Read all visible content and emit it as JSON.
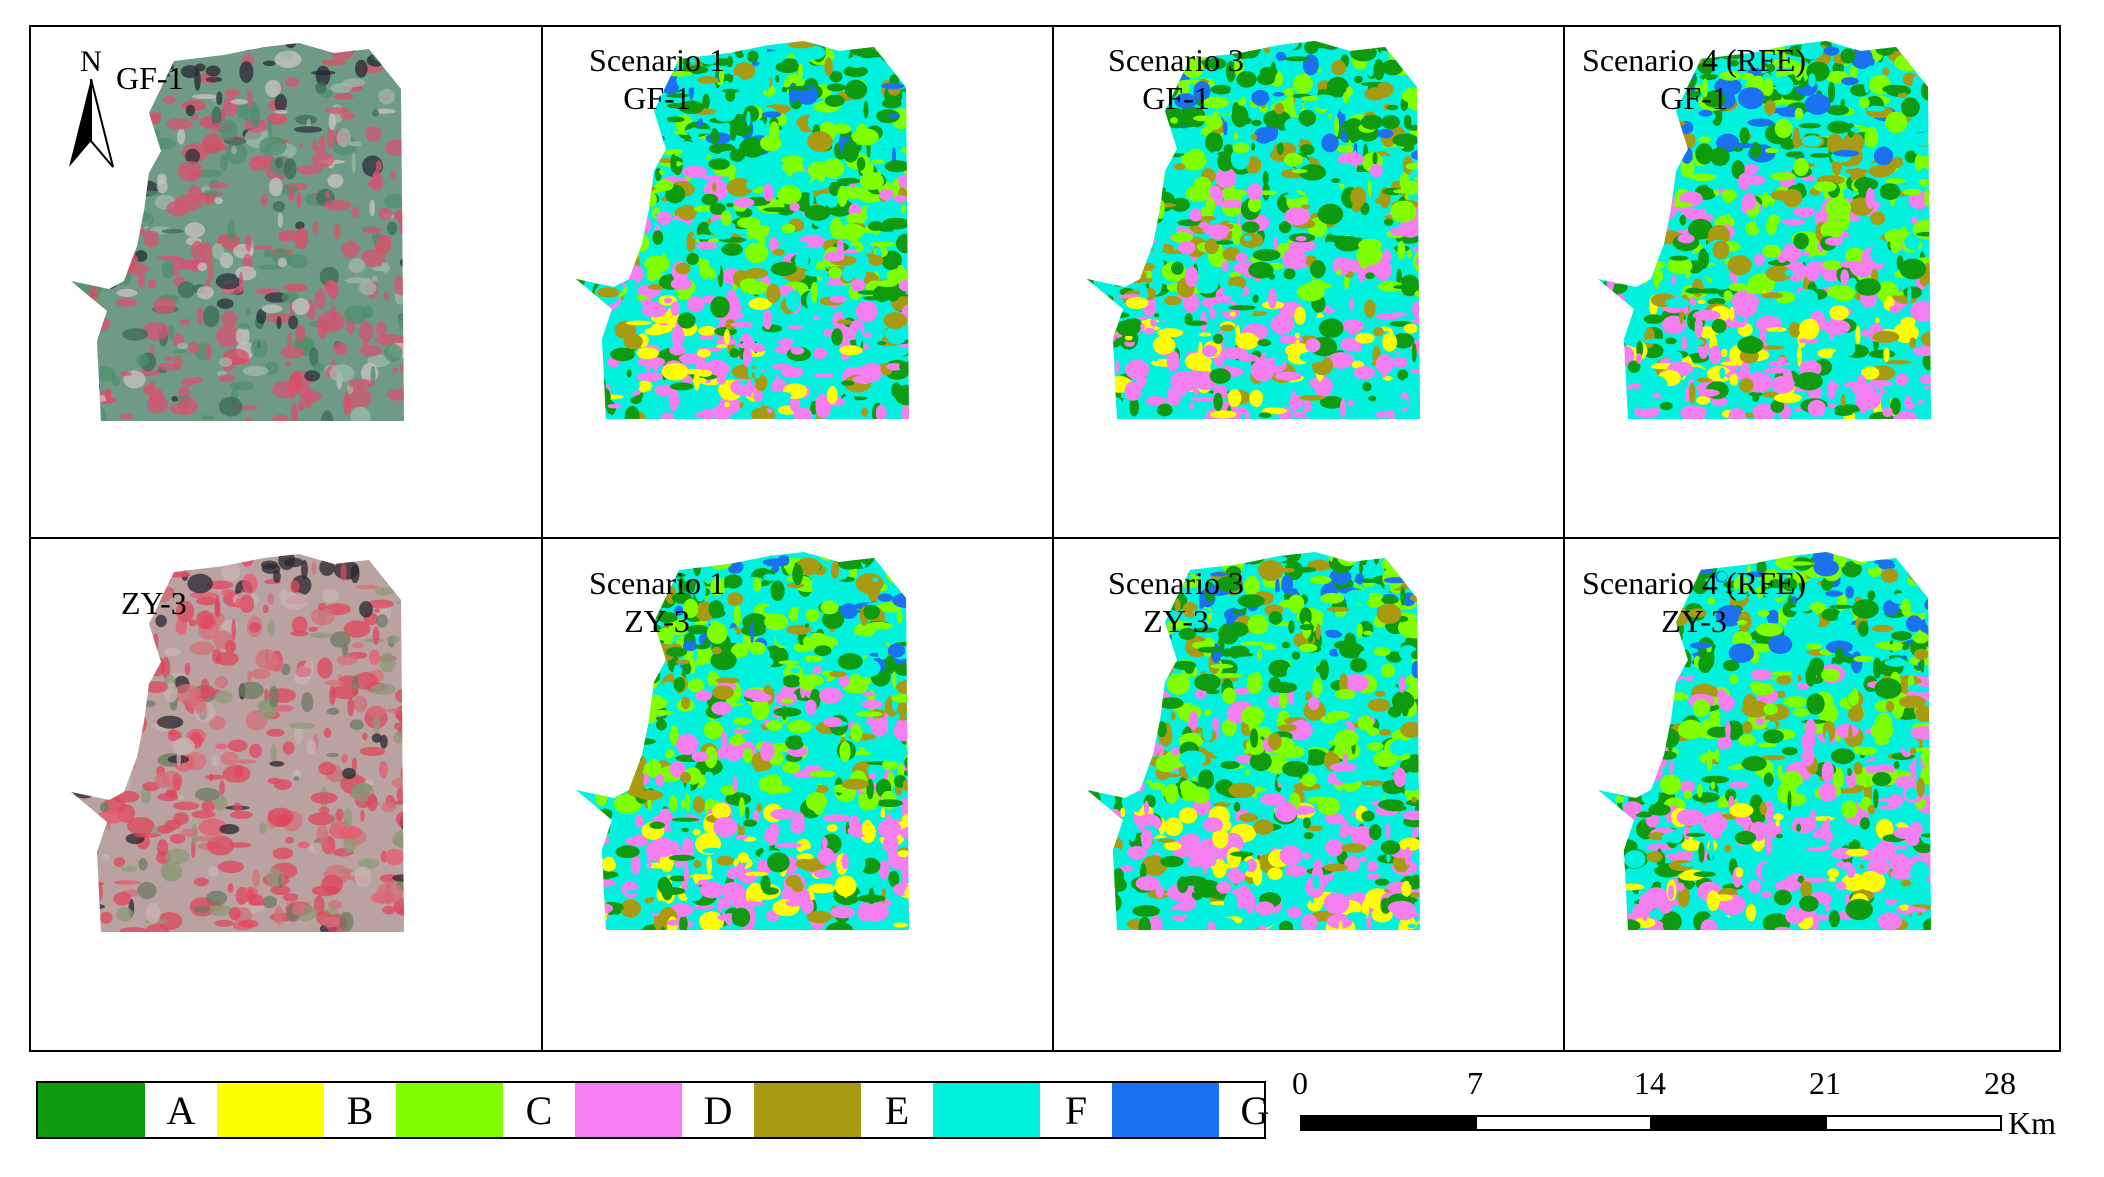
{
  "panels": [
    {
      "id": "gf1-image",
      "kind": "image",
      "lines": [
        "GF-1"
      ]
    },
    {
      "id": "s1-gf1",
      "kind": "class",
      "lines": [
        "Scenario 1",
        "GF-1"
      ]
    },
    {
      "id": "s3-gf1",
      "kind": "class",
      "lines": [
        "Scenario 3",
        "GF-1"
      ]
    },
    {
      "id": "s4-gf1",
      "kind": "class",
      "lines": [
        "Scenario 4 (RFE)",
        "GF-1"
      ]
    },
    {
      "id": "zy3-image",
      "kind": "image",
      "lines": [
        "ZY-3"
      ]
    },
    {
      "id": "s1-zy3",
      "kind": "class",
      "lines": [
        "Scenario 1",
        "ZY-3"
      ]
    },
    {
      "id": "s3-zy3",
      "kind": "class",
      "lines": [
        "Scenario 3",
        "ZY-3"
      ]
    },
    {
      "id": "s4-zy3",
      "kind": "class",
      "lines": [
        "Scenario 4 (RFE)",
        "ZY-3"
      ]
    }
  ],
  "north_label": "N",
  "legend": [
    {
      "label": "A",
      "color": "#0f9b0f"
    },
    {
      "label": "B",
      "color": "#ffff00"
    },
    {
      "label": "C",
      "color": "#7fff00"
    },
    {
      "label": "D",
      "color": "#f57ef0"
    },
    {
      "label": "E",
      "color": "#a89a12"
    },
    {
      "label": "F",
      "color": "#00f2de"
    },
    {
      "label": "G",
      "color": "#1a72f0"
    }
  ],
  "scale_bar": {
    "ticks": [
      "0",
      "7",
      "14",
      "21",
      "28"
    ],
    "unit": "Km"
  }
}
